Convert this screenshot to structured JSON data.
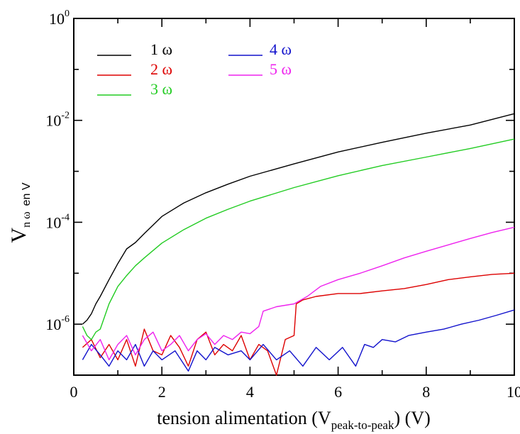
{
  "chart_data": {
    "type": "line",
    "xlabel": {
      "main": "tension alimentation (V",
      "sub": "peak-to-peak",
      "tail": ")  (V)"
    },
    "ylabel": {
      "main": "V",
      "sub": "n ω",
      "unit": "en V"
    },
    "xlim": [
      0,
      10
    ],
    "ylim": [
      1e-07,
      1
    ],
    "yscale": "log",
    "grid": false,
    "legend": "top-left",
    "x_ticks": [
      "0",
      "2",
      "4",
      "6",
      "8",
      "10"
    ],
    "y_ticks": [
      {
        "base": "10",
        "exp": "0",
        "value": 1
      },
      {
        "base": "10",
        "exp": "-2",
        "value": 0.01
      },
      {
        "base": "10",
        "exp": "-4",
        "value": 0.0001
      },
      {
        "base": "10",
        "exp": "-6",
        "value": 1e-06
      }
    ],
    "series": [
      {
        "name": "1 ω",
        "color": "#000000",
        "x": [
          0.2,
          0.3,
          0.4,
          0.5,
          0.6,
          0.8,
          1.0,
          1.2,
          1.4,
          1.6,
          2.0,
          2.5,
          3.0,
          3.5,
          4.0,
          5.0,
          6.0,
          7.0,
          8.0,
          9.0,
          10.0
        ],
        "y": [
          1e-06,
          1.2e-06,
          1.6e-06,
          2.5e-06,
          3.5e-06,
          7.5e-06,
          1.55e-05,
          3e-05,
          4e-05,
          6e-05,
          0.00013,
          0.00024,
          0.00038,
          0.00056,
          0.0008,
          0.0014,
          0.0024,
          0.0037,
          0.0056,
          0.0081,
          0.0135
        ]
      },
      {
        "name": "2 ω",
        "color": "#dd0000",
        "x": [
          0.2,
          0.4,
          0.6,
          0.8,
          1.0,
          1.2,
          1.4,
          1.6,
          1.8,
          2.0,
          2.2,
          2.4,
          2.6,
          2.8,
          3.0,
          3.2,
          3.4,
          3.6,
          3.8,
          4.0,
          4.2,
          4.4,
          4.6,
          4.8,
          5.0,
          5.05,
          5.2,
          5.5,
          6.0,
          6.5,
          7.0,
          7.5,
          8.0,
          8.5,
          9.0,
          9.5,
          10.0
        ],
        "y": [
          3.5e-07,
          5e-07,
          2.2e-07,
          4e-07,
          2e-07,
          5e-07,
          1.5e-07,
          8e-07,
          3e-07,
          2.5e-07,
          6e-07,
          3.5e-07,
          1.5e-07,
          5e-07,
          7e-07,
          2.5e-07,
          4e-07,
          3e-07,
          6e-07,
          2e-07,
          4e-07,
          3e-07,
          1e-07,
          5e-07,
          6e-07,
          2.5e-06,
          3e-06,
          3.5e-06,
          4e-06,
          4e-06,
          4.5e-06,
          5e-06,
          6e-06,
          7.5e-06,
          8.5e-06,
          9.5e-06,
          1e-05
        ]
      },
      {
        "name": "3 ω",
        "color": "#22cc22",
        "x": [
          0.2,
          0.3,
          0.4,
          0.5,
          0.6,
          0.8,
          1.0,
          1.2,
          1.4,
          1.6,
          2.0,
          2.5,
          3.0,
          3.5,
          4.0,
          5.0,
          6.0,
          7.0,
          8.0,
          9.0,
          10.0
        ],
        "y": [
          9e-07,
          6e-07,
          5e-07,
          7e-07,
          8e-07,
          2.5e-06,
          5.5e-06,
          9e-06,
          1.4e-05,
          2e-05,
          3.9e-05,
          7.2e-05,
          0.00012,
          0.00018,
          0.00026,
          0.00048,
          0.00082,
          0.0013,
          0.0019,
          0.0028,
          0.0043
        ]
      },
      {
        "name": "4 ω",
        "color": "#1111cc",
        "x": [
          0.2,
          0.4,
          0.6,
          0.8,
          1.0,
          1.2,
          1.4,
          1.6,
          1.8,
          2.0,
          2.3,
          2.6,
          2.8,
          3.0,
          3.2,
          3.5,
          3.8,
          4.0,
          4.3,
          4.6,
          4.9,
          5.2,
          5.5,
          5.8,
          6.1,
          6.4,
          6.6,
          6.8,
          7.0,
          7.3,
          7.6,
          8.0,
          8.4,
          8.8,
          9.2,
          9.6,
          10.0
        ],
        "y": [
          2e-07,
          4e-07,
          2.5e-07,
          1.5e-07,
          3e-07,
          2e-07,
          4e-07,
          1.5e-07,
          3e-07,
          2e-07,
          3e-07,
          1.2e-07,
          3e-07,
          2e-07,
          3.5e-07,
          2.5e-07,
          3e-07,
          2e-07,
          4e-07,
          2e-07,
          3e-07,
          1.5e-07,
          3.5e-07,
          2e-07,
          3.5e-07,
          1.5e-07,
          4e-07,
          3.5e-07,
          5e-07,
          4.5e-07,
          6e-07,
          7e-07,
          8e-07,
          1e-06,
          1.2e-06,
          1.5e-06,
          1.9e-06
        ]
      },
      {
        "name": "5 ω",
        "color": "#ee22ee",
        "x": [
          0.2,
          0.4,
          0.6,
          0.8,
          1.0,
          1.2,
          1.4,
          1.6,
          1.8,
          2.0,
          2.2,
          2.4,
          2.6,
          2.8,
          3.0,
          3.2,
          3.4,
          3.6,
          3.8,
          4.0,
          4.2,
          4.3,
          4.6,
          5.0,
          5.3,
          5.6,
          6.0,
          6.5,
          7.0,
          7.5,
          8.0,
          8.5,
          9.0,
          9.5,
          10.0
        ],
        "y": [
          6e-07,
          3e-07,
          5e-07,
          2e-07,
          4e-07,
          6e-07,
          2.5e-07,
          5e-07,
          7e-07,
          3e-07,
          4e-07,
          6e-07,
          3e-07,
          5e-07,
          6.5e-07,
          4e-07,
          6e-07,
          5e-07,
          7e-07,
          6.5e-07,
          9e-07,
          1.8e-06,
          2.2e-06,
          2.5e-06,
          3.5e-06,
          5.5e-06,
          7.5e-06,
          1e-05,
          1.4e-05,
          2e-05,
          2.7e-05,
          3.6e-05,
          4.8e-05,
          6.3e-05,
          8e-05
        ]
      }
    ]
  }
}
